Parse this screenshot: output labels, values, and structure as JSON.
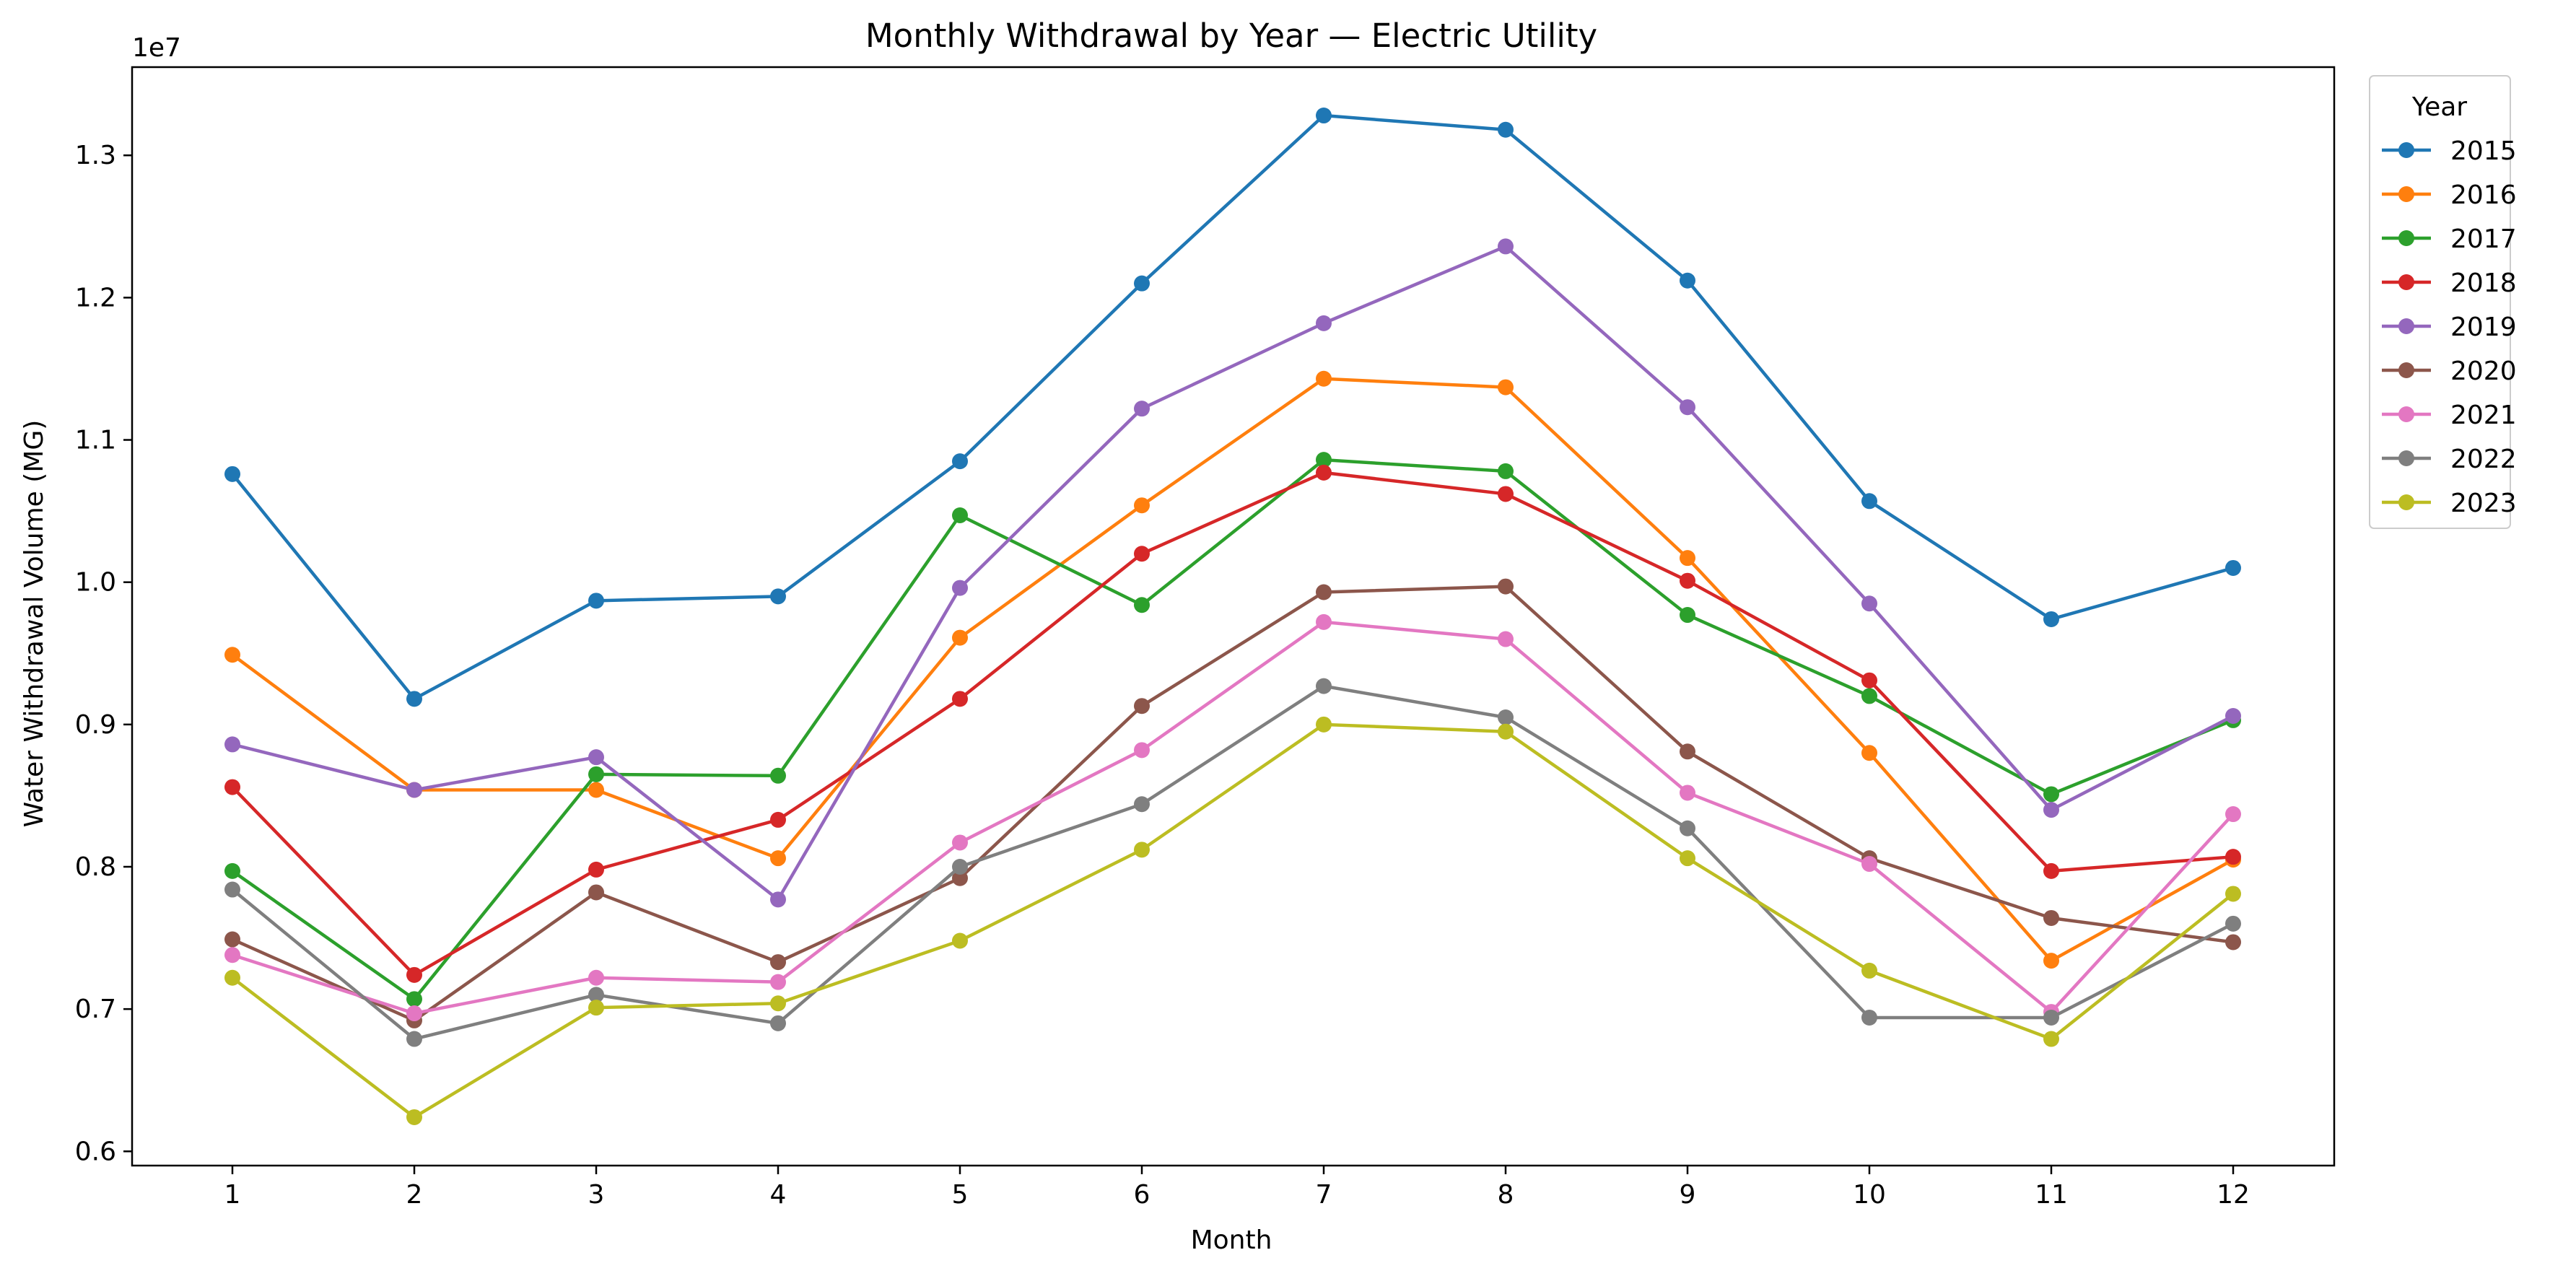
{
  "chart_data": {
    "type": "line",
    "title": "Monthly Withdrawal by Year — Electric Utility",
    "xlabel": "Month",
    "ylabel": "Water Withdrawal Volume (MG)",
    "y_offset_text": "1e7",
    "x": [
      1,
      2,
      3,
      4,
      5,
      6,
      7,
      8,
      9,
      10,
      11,
      12
    ],
    "x_tick_labels": [
      "1",
      "2",
      "3",
      "4",
      "5",
      "6",
      "7",
      "8",
      "9",
      "10",
      "11",
      "12"
    ],
    "ylim": [
      5900000,
      13620000
    ],
    "y_ticks": [
      6000000,
      7000000,
      8000000,
      9000000,
      10000000,
      11000000,
      12000000,
      13000000
    ],
    "y_tick_labels": [
      "0.6",
      "0.7",
      "0.8",
      "0.9",
      "1.0",
      "1.1",
      "1.2",
      "1.3"
    ],
    "grid": false,
    "legend_title": "Year",
    "legend_position": "outside-right-top",
    "markers": "circle",
    "series": [
      {
        "name": "2015",
        "color": "#1f77b4",
        "values": [
          10760000,
          9180000,
          9870000,
          9900000,
          10850000,
          12100000,
          13280000,
          13180000,
          12120000,
          10570000,
          9740000,
          10100000
        ]
      },
      {
        "name": "2016",
        "color": "#ff7f0e",
        "values": [
          9490000,
          8540000,
          8540000,
          8060000,
          9610000,
          10540000,
          11430000,
          11370000,
          10170000,
          8800000,
          7340000,
          8050000
        ]
      },
      {
        "name": "2017",
        "color": "#2ca02c",
        "values": [
          7970000,
          7070000,
          8650000,
          8640000,
          10470000,
          9840000,
          10860000,
          10780000,
          9770000,
          9200000,
          8510000,
          9030000
        ]
      },
      {
        "name": "2018",
        "color": "#d62728",
        "values": [
          8560000,
          7240000,
          7980000,
          8330000,
          9180000,
          10200000,
          10770000,
          10620000,
          10010000,
          9310000,
          7970000,
          8070000
        ]
      },
      {
        "name": "2019",
        "color": "#9467bd",
        "values": [
          8860000,
          8540000,
          8770000,
          7770000,
          9960000,
          11220000,
          11820000,
          12360000,
          11230000,
          9850000,
          8400000,
          9060000
        ]
      },
      {
        "name": "2020",
        "color": "#8c564b",
        "values": [
          7490000,
          6920000,
          7820000,
          7330000,
          7920000,
          9130000,
          9930000,
          9970000,
          8810000,
          8060000,
          7640000,
          7470000
        ]
      },
      {
        "name": "2021",
        "color": "#e377c2",
        "values": [
          7380000,
          6970000,
          7220000,
          7190000,
          8170000,
          8820000,
          9720000,
          9600000,
          8520000,
          8020000,
          6980000,
          8370000
        ]
      },
      {
        "name": "2022",
        "color": "#7f7f7f",
        "values": [
          7840000,
          6790000,
          7100000,
          6900000,
          8000000,
          8440000,
          9270000,
          9050000,
          8270000,
          6940000,
          6940000,
          7600000
        ]
      },
      {
        "name": "2023",
        "color": "#bcbd22",
        "values": [
          7220000,
          6240000,
          7010000,
          7040000,
          7480000,
          8120000,
          9000000,
          8950000,
          8060000,
          7270000,
          6790000,
          7810000
        ]
      }
    ]
  }
}
